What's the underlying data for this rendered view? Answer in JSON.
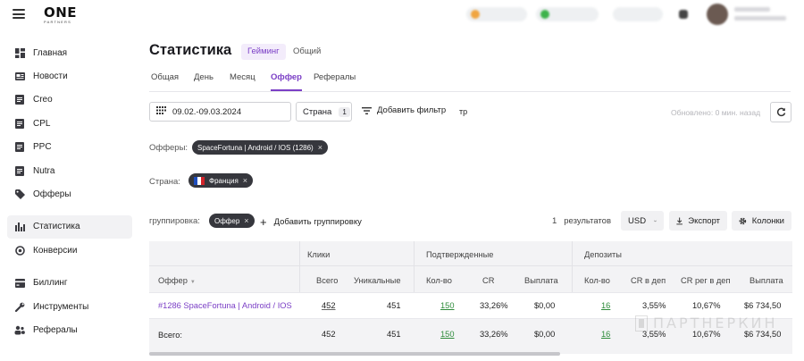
{
  "brand": {
    "logo": "ONE",
    "logo_sub": "PARTNERS"
  },
  "sidebar": {
    "items": [
      {
        "label": "Главная",
        "icon": "dashboard-icon"
      },
      {
        "label": "Новости",
        "icon": "news-icon"
      },
      {
        "label": "Creo",
        "icon": "document-icon"
      },
      {
        "label": "CPL",
        "icon": "document-icon"
      },
      {
        "label": "PPC",
        "icon": "document-icon"
      },
      {
        "label": "Nutra",
        "icon": "document-icon"
      },
      {
        "label": "Офферы",
        "icon": "tag-icon"
      },
      {
        "label": "Статистика",
        "icon": "bar-chart-icon"
      },
      {
        "label": "Конверсии",
        "icon": "conversion-icon"
      },
      {
        "label": "Биллинг",
        "icon": "billing-icon"
      },
      {
        "label": "Инструменты",
        "icon": "wrench-icon"
      },
      {
        "label": "Рефералы",
        "icon": "referrals-icon"
      }
    ],
    "active": "Статистика"
  },
  "page": {
    "title": "Статистика",
    "mode_tabs": [
      "Гейминг",
      "Общий"
    ],
    "active_mode": "Гейминг"
  },
  "tabs": {
    "items": [
      "Общая",
      "День",
      "Месяц",
      "Оффер",
      "Рефералы"
    ],
    "active": "Оффер"
  },
  "filters": {
    "date_range": "09.02.-09.03.2024",
    "country_label": "Страна",
    "country_count": "1",
    "add_filter": "Добавить фильтр",
    "cut_text": "тр",
    "updated": "Обновлено: 0 мин. назад"
  },
  "offers_row": {
    "label": "Офферы:",
    "chip": "SpaceFortuna | Android / IOS (1286)"
  },
  "country_row": {
    "label": "Страна:",
    "chip": "Франция"
  },
  "grouping": {
    "label": "группировка:",
    "chip": "Оффер",
    "add": "Добавить группировку",
    "results_count": "1",
    "results_label": "результатов",
    "currency": "USD",
    "export": "Экспорт",
    "columns": "Колонки"
  },
  "table": {
    "groups": {
      "clicks": "Клики",
      "confirmed": "Подтвержденные",
      "deposits": "Депозиты"
    },
    "headers": {
      "offer": "Оффер",
      "total": "Всего",
      "unique": "Уникальные",
      "count": "Кол-во",
      "cr": "CR",
      "payout": "Выплата",
      "dep_count": "Кол-во",
      "cr_dep": "CR в деп",
      "cr_reg_dep": "CR рег в деп",
      "dep_payout": "Выплата"
    },
    "rows": [
      {
        "offer": "#1286 SpaceFortuna | Android / IOS",
        "total": "452",
        "unique": "451",
        "count": "150",
        "cr": "33,26%",
        "payout": "$0,00",
        "dep_count": "16",
        "cr_dep": "3,55%",
        "cr_reg_dep": "10,67%",
        "dep_payout": "$6 734,50"
      }
    ],
    "totals": {
      "label": "Всего:",
      "total": "452",
      "unique": "451",
      "count": "150",
      "cr": "33,26%",
      "payout": "$0,00",
      "dep_count": "16",
      "cr_dep": "3,55%",
      "cr_reg_dep": "10,67%",
      "dep_payout": "$6 734,50"
    }
  },
  "watermark": "ПАРТНЕРКИН",
  "colors": {
    "accent": "#7b3fc6",
    "green": "#2e8b3a",
    "chip_bg": "#36373d"
  }
}
